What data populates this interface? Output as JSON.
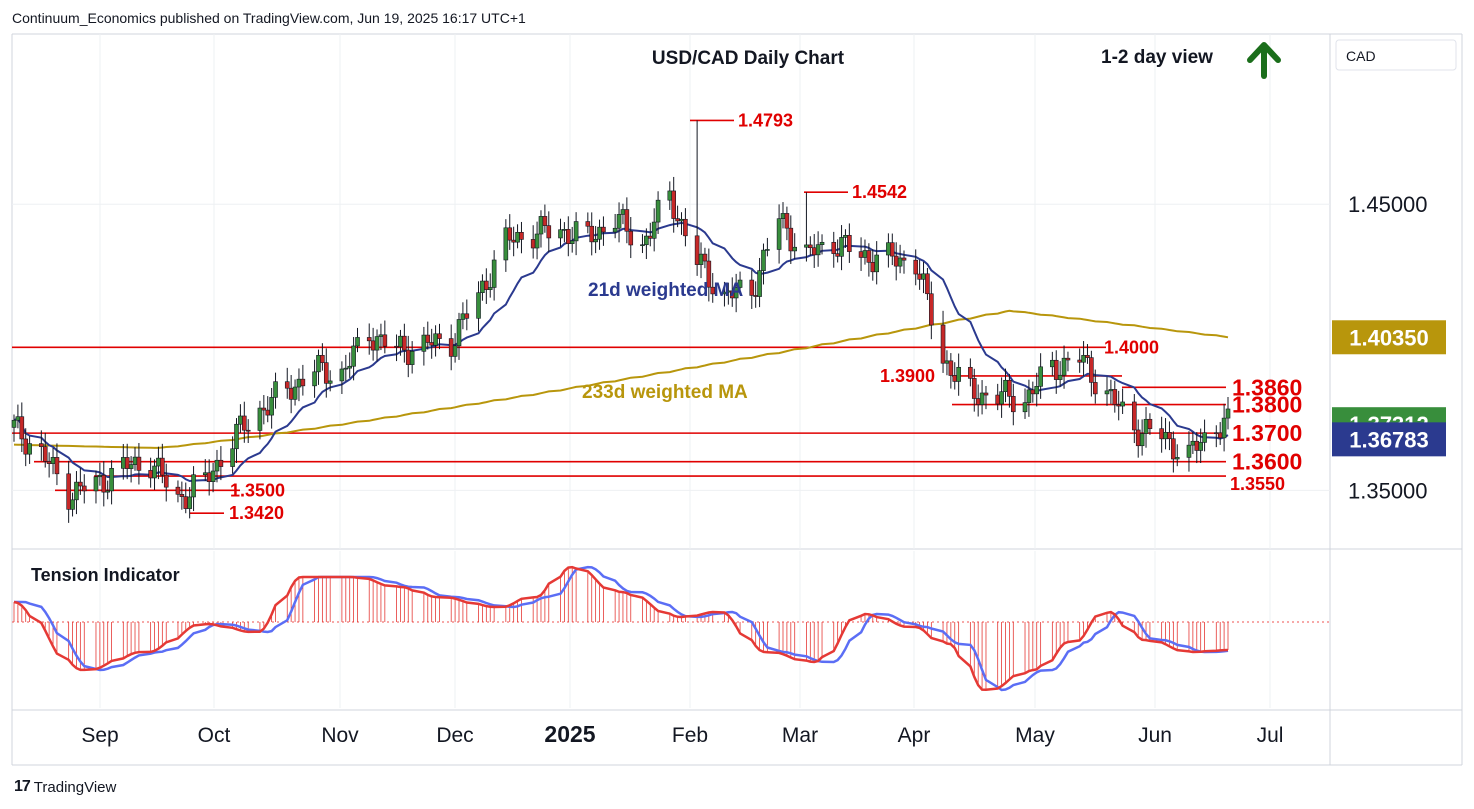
{
  "header": {
    "published": "Continuum_Economics published on TradingView.com, Jun 19, 2025 16:17 UTC+1"
  },
  "footer": {
    "brand": "TradingView",
    "logo": "17"
  },
  "currency_label": "CAD",
  "colors": {
    "up": "#388e3c",
    "down": "#c62828",
    "red": "#e00000",
    "ma21": "#2b3a8f",
    "ma233": "#b8960c",
    "green_arrow": "#1b6e1b"
  },
  "chart_data": {
    "type": "candlestick",
    "title": "USD/CAD Daily Chart",
    "view": "1-2 day view",
    "view_direction": "up",
    "ylim": [
      1.3295,
      1.5095
    ],
    "y_ticks": [
      1.35,
      1.45
    ],
    "y_tick_labels": [
      "1.35000",
      "1.45000"
    ],
    "x_ticks": [
      "Sep",
      "Oct",
      "Nov",
      "Dec",
      "2025",
      "Feb",
      "Mar",
      "Apr",
      "May",
      "Jun",
      "Jul"
    ],
    "price_tags": [
      {
        "value": 1.4035,
        "label": "1.40350",
        "style": "ma233"
      },
      {
        "value": 1.37312,
        "label": "1.37312",
        "style": "up"
      },
      {
        "value": 1.36783,
        "label": "1.36783",
        "style": "ma21"
      }
    ],
    "levels": [
      {
        "label": "1.4000",
        "value": 1.4,
        "size": "small"
      },
      {
        "label": "1.3900",
        "value": 1.39,
        "size": "small"
      },
      {
        "label": "1.3860",
        "value": 1.386,
        "size": "large"
      },
      {
        "label": "1.3800",
        "value": 1.38,
        "size": "large"
      },
      {
        "label": "1.3700",
        "value": 1.37,
        "size": "large"
      },
      {
        "label": "1.3600",
        "value": 1.36,
        "size": "large"
      },
      {
        "label": "1.3550",
        "value": 1.355,
        "size": "small"
      },
      {
        "label": "1.3500",
        "value": 1.35,
        "size": "small"
      },
      {
        "label": "1.3420",
        "value": 1.342,
        "size": "small"
      },
      {
        "label": "1.4793",
        "value": 1.4793,
        "size": "small"
      },
      {
        "label": "1.4542",
        "value": 1.4542,
        "size": "small"
      }
    ],
    "annotations": [
      "21d weighted MA",
      "233d weighted MA"
    ],
    "indicator": {
      "title": "Tension Indicator",
      "zero_line": true
    },
    "series_close": [
      {
        "date": "2024-08-12",
        "close": 1.372
      },
      {
        "date": "2024-08-19",
        "close": 1.363
      },
      {
        "date": "2024-08-26",
        "close": 1.349
      },
      {
        "date": "2024-09-02",
        "close": 1.352
      },
      {
        "date": "2024-09-09",
        "close": 1.358
      },
      {
        "date": "2024-09-16",
        "close": 1.36
      },
      {
        "date": "2024-09-23",
        "close": 1.347
      },
      {
        "date": "2024-09-30",
        "close": 1.353
      },
      {
        "date": "2024-10-07",
        "close": 1.368
      },
      {
        "date": "2024-10-14",
        "close": 1.378
      },
      {
        "date": "2024-10-21",
        "close": 1.385
      },
      {
        "date": "2024-10-28",
        "close": 1.392
      },
      {
        "date": "2024-11-04",
        "close": 1.391
      },
      {
        "date": "2024-11-11",
        "close": 1.405
      },
      {
        "date": "2024-11-18",
        "close": 1.399
      },
      {
        "date": "2024-11-25",
        "close": 1.401
      },
      {
        "date": "2024-12-02",
        "close": 1.402
      },
      {
        "date": "2024-12-09",
        "close": 1.418
      },
      {
        "date": "2024-12-16",
        "close": 1.437
      },
      {
        "date": "2024-12-23",
        "close": 1.44
      },
      {
        "date": "2024-12-30",
        "close": 1.441
      },
      {
        "date": "2025-01-06",
        "close": 1.438
      },
      {
        "date": "2025-01-13",
        "close": 1.445
      },
      {
        "date": "2025-01-20",
        "close": 1.436
      },
      {
        "date": "2025-01-27",
        "close": 1.453
      },
      {
        "date": "2025-02-03",
        "close": 1.43
      },
      {
        "date": "2025-02-10",
        "close": 1.418
      },
      {
        "date": "2025-02-17",
        "close": 1.42
      },
      {
        "date": "2025-02-24",
        "close": 1.445
      },
      {
        "date": "2025-03-03",
        "close": 1.432
      },
      {
        "date": "2025-03-10",
        "close": 1.437
      },
      {
        "date": "2025-03-17",
        "close": 1.432
      },
      {
        "date": "2025-03-24",
        "close": 1.431
      },
      {
        "date": "2025-03-31",
        "close": 1.43
      },
      {
        "date": "2025-04-07",
        "close": 1.396
      },
      {
        "date": "2025-04-14",
        "close": 1.384
      },
      {
        "date": "2025-04-21",
        "close": 1.383
      },
      {
        "date": "2025-04-28",
        "close": 1.382
      },
      {
        "date": "2025-05-05",
        "close": 1.393
      },
      {
        "date": "2025-05-12",
        "close": 1.396
      },
      {
        "date": "2025-05-19",
        "close": 1.384
      },
      {
        "date": "2025-05-26",
        "close": 1.372
      },
      {
        "date": "2025-06-02",
        "close": 1.369
      },
      {
        "date": "2025-06-09",
        "close": 1.362
      },
      {
        "date": "2025-06-16",
        "close": 1.3731
      }
    ]
  }
}
